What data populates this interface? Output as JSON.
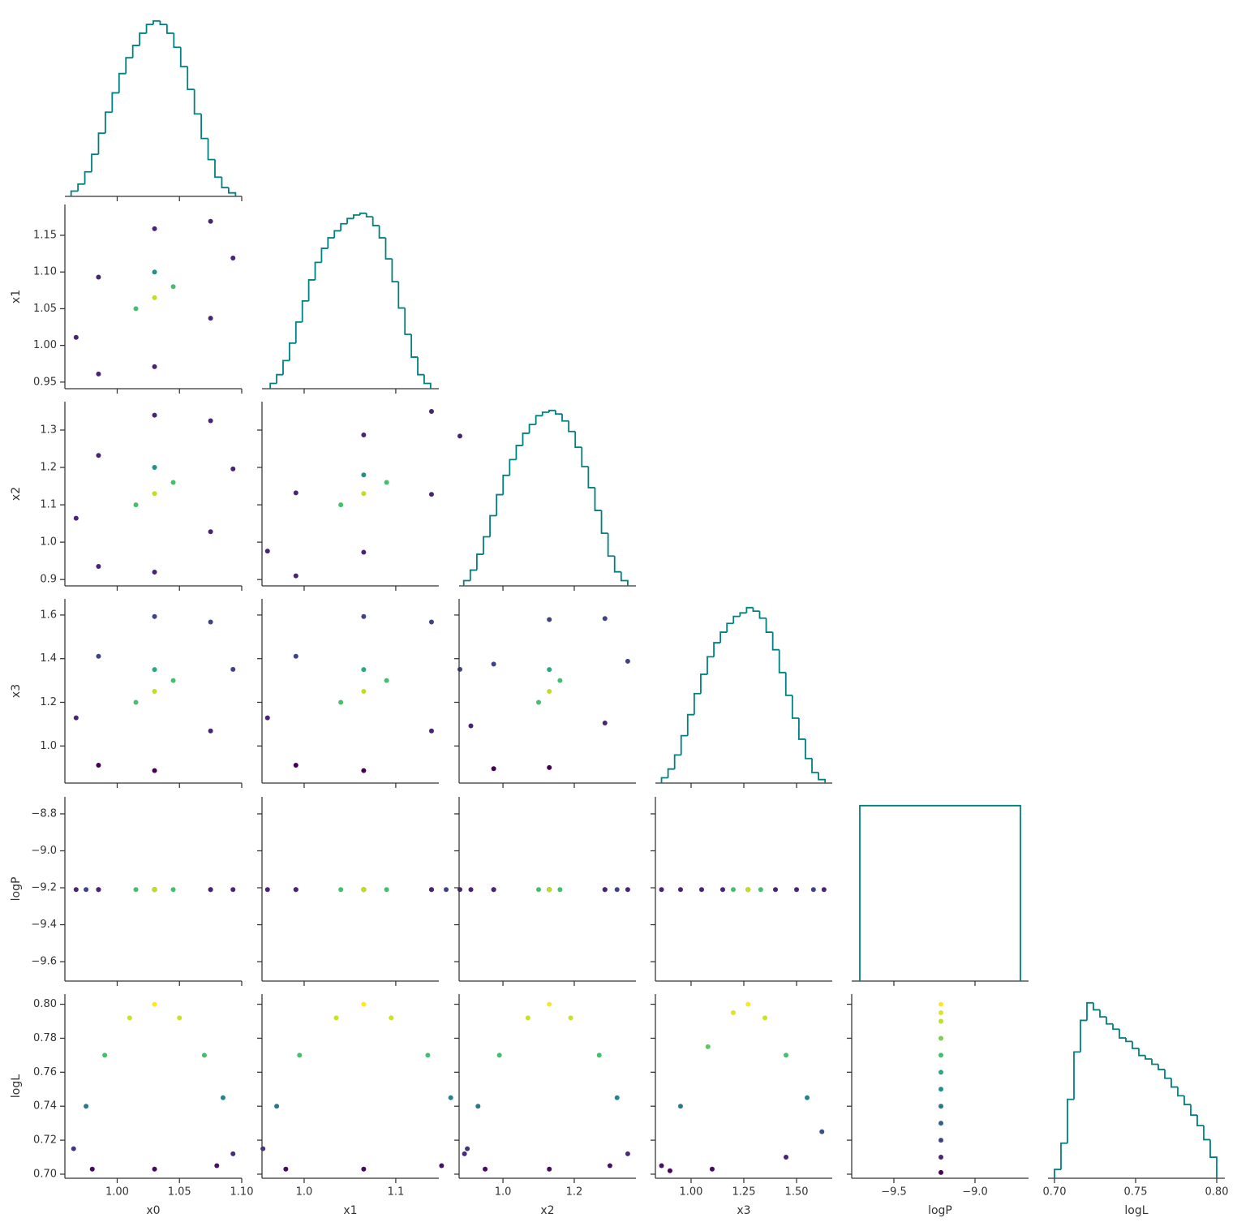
{
  "chart_data": {
    "type": "corner",
    "colormap": "viridis",
    "clim": [
      0.7,
      0.8
    ],
    "hist_color": "#008080",
    "variables": [
      {
        "name": "x0",
        "xlim": [
          0.958,
          1.1
        ],
        "xticks": [
          {
            "value": 1.0,
            "label": "1.00"
          },
          {
            "value": 1.05,
            "label": "1.05"
          },
          {
            "value": 1.1,
            "label": "1.10"
          }
        ]
      },
      {
        "name": "x1",
        "xlim": [
          0.954,
          1.147
        ],
        "xticks": [
          {
            "value": 1.0,
            "label": "1.0"
          },
          1.1
        ],
        "ylim": [
          0.941,
          1.192
        ],
        "yticks": [
          0.95,
          {
            "value": 1.0,
            "label": "1.00"
          },
          1.05,
          {
            "value": 1.1,
            "label": "1.10"
          },
          1.15
        ]
      },
      {
        "name": "x2",
        "xlim": [
          0.877,
          1.373
        ],
        "xticks": [
          {
            "value": 1.0,
            "label": "1.0"
          },
          1.2
        ],
        "ylim": [
          0.883,
          1.376
        ],
        "yticks": [
          0.9,
          {
            "value": 1.0,
            "label": "1.0"
          },
          1.1,
          1.2,
          1.3
        ]
      },
      {
        "name": "x3",
        "xlim": [
          0.831,
          1.669
        ],
        "xticks": [
          {
            "value": 1.0,
            "label": "1.00"
          },
          1.25,
          {
            "value": 1.5,
            "label": "1.50"
          }
        ],
        "ylim": [
          0.83,
          1.674
        ],
        "yticks": [
          {
            "value": 1.0,
            "label": "1.0"
          },
          1.2,
          1.4,
          1.6
        ]
      },
      {
        "name": "logP",
        "xlim": [
          -9.76,
          -8.67
        ],
        "xticks": [
          {
            "value": -9.5,
            "label": "−9.5"
          },
          {
            "value": -9.0,
            "label": "−9.0"
          }
        ],
        "ylim": [
          -9.705,
          -8.708
        ],
        "yticks": [
          {
            "value": -8.8,
            "label": "−8.8"
          },
          {
            "value": -9.0,
            "label": "−9.0"
          },
          {
            "value": -9.2,
            "label": "−9.2"
          },
          {
            "value": -9.4,
            "label": "−9.4"
          },
          {
            "value": -9.6,
            "label": "−9.6"
          }
        ]
      },
      {
        "name": "logL",
        "xlim": [
          0.696,
          0.805
        ],
        "xticks": [
          {
            "value": 0.7,
            "label": "0.70"
          },
          0.75,
          {
            "value": 0.8,
            "label": "0.80"
          }
        ],
        "ylim": [
          0.6976,
          0.806
        ],
        "yticks": [
          {
            "value": 0.7,
            "label": "0.70"
          },
          0.72,
          0.74,
          0.76,
          0.78,
          {
            "value": 0.8,
            "label": "0.80"
          }
        ]
      }
    ],
    "histograms": [
      {
        "ylim": [
          0,
          105
        ],
        "bins": [
          0.963,
          0.9685,
          0.974,
          0.9795,
          0.985,
          0.9905,
          0.996,
          1.0015,
          1.007,
          1.0125,
          1.018,
          1.0235,
          1.029,
          1.0345,
          1.04,
          1.0455,
          1.051,
          1.0565,
          1.062,
          1.0675,
          1.073,
          1.0785,
          1.084,
          1.0895,
          1.095
        ],
        "counts": [
          3,
          7,
          14,
          24,
          36,
          48,
          59,
          70,
          79,
          86,
          93,
          98,
          100,
          98,
          93,
          85,
          74,
          61,
          47,
          33,
          21,
          11,
          5,
          2
        ]
      },
      {
        "ylim": [
          0,
          105
        ],
        "bins": [
          0.963,
          0.97,
          0.977,
          0.984,
          0.991,
          0.998,
          1.005,
          1.012,
          1.019,
          1.026,
          1.033,
          1.04,
          1.047,
          1.054,
          1.061,
          1.068,
          1.075,
          1.082,
          1.089,
          1.096,
          1.103,
          1.11,
          1.117,
          1.124,
          1.131,
          1.138
        ],
        "counts": [
          3,
          8,
          16,
          26,
          38,
          50,
          62,
          72,
          80,
          86,
          90,
          94,
          97,
          99,
          100,
          98,
          93,
          86,
          74,
          61,
          46,
          31,
          18,
          8,
          3
        ]
      },
      {
        "ylim": [
          0,
          105
        ],
        "bins": [
          0.89,
          0.9084,
          0.9268,
          0.9452,
          0.9636,
          0.982,
          1.0004,
          1.0188,
          1.0372,
          1.0556,
          1.074,
          1.0924,
          1.1108,
          1.1292,
          1.1476,
          1.166,
          1.1844,
          1.2028,
          1.2212,
          1.2396,
          1.258,
          1.2764,
          1.2948,
          1.3132,
          1.3316,
          1.35
        ],
        "counts": [
          3,
          9,
          18,
          28,
          40,
          52,
          63,
          72,
          80,
          87,
          92,
          97,
          99,
          100,
          98,
          94,
          88,
          79,
          68,
          56,
          43,
          30,
          17,
          8,
          3
        ]
      },
      {
        "ylim": [
          0,
          105
        ],
        "bins": [
          0.86,
          0.891,
          0.922,
          0.953,
          0.984,
          1.015,
          1.046,
          1.077,
          1.108,
          1.139,
          1.17,
          1.201,
          1.232,
          1.263,
          1.294,
          1.325,
          1.356,
          1.387,
          1.418,
          1.449,
          1.48,
          1.511,
          1.542,
          1.573,
          1.604,
          1.635
        ],
        "counts": [
          3,
          8,
          16,
          27,
          39,
          51,
          62,
          72,
          80,
          86,
          91,
          95,
          97,
          100,
          98,
          94,
          86,
          76,
          63,
          50,
          37,
          25,
          14,
          6,
          2
        ]
      },
      {
        "ylim": [
          0,
          105
        ],
        "bins": [
          -9.71,
          -8.72
        ],
        "counts": [
          100
        ]
      },
      {
        "ylim": [
          0,
          105
        ],
        "bins": [
          0.7,
          0.704,
          0.708,
          0.712,
          0.716,
          0.72,
          0.724,
          0.728,
          0.732,
          0.736,
          0.74,
          0.744,
          0.748,
          0.752,
          0.756,
          0.76,
          0.764,
          0.768,
          0.772,
          0.776,
          0.78,
          0.784,
          0.788,
          0.792,
          0.796,
          0.8
        ],
        "counts": [
          5,
          20,
          45,
          72,
          90,
          100,
          96,
          92,
          88,
          85,
          80,
          78,
          74,
          70,
          68,
          65,
          62,
          57,
          52,
          47,
          42,
          36,
          30,
          22,
          12
        ]
      }
    ],
    "scatter": [
      [
        {
          "x": [
            1.093,
            1.075,
            1.03,
            0.985,
            0.967,
            0.985,
            1.03,
            1.075,
            1.03,
            1.015,
            1.045,
            1.03
          ],
          "y": [
            1.119,
            1.169,
            1.159,
            1.093,
            1.011,
            0.961,
            0.971,
            1.037,
            1.065,
            1.05,
            1.08,
            1.1
          ],
          "c": [
            0.71,
            0.71,
            0.71,
            0.71,
            0.71,
            0.71,
            0.71,
            0.71,
            0.79,
            0.77,
            0.77,
            0.75
          ]
        }
      ],
      [
        {
          "x": [
            1.093,
            1.075,
            1.03,
            0.985,
            0.967,
            0.985,
            1.03,
            1.075,
            1.03,
            1.015,
            1.045,
            1.03
          ],
          "y": [
            1.196,
            1.325,
            1.34,
            1.232,
            1.064,
            0.935,
            0.92,
            1.028,
            1.13,
            1.1,
            1.16,
            1.2
          ],
          "c": [
            0.71,
            0.71,
            0.71,
            0.71,
            0.71,
            0.71,
            0.71,
            0.71,
            0.79,
            0.77,
            0.77,
            0.75
          ]
        },
        {
          "x": [
            1.17,
            1.139,
            1.065,
            0.991,
            0.96,
            0.991,
            1.065,
            1.139,
            1.065,
            1.04,
            1.09,
            1.065
          ],
          "y": [
            1.284,
            1.35,
            1.287,
            1.132,
            0.976,
            0.91,
            0.973,
            1.128,
            1.13,
            1.1,
            1.16,
            1.18
          ],
          "c": [
            0.71,
            0.71,
            0.71,
            0.71,
            0.71,
            0.71,
            0.71,
            0.71,
            0.79,
            0.77,
            0.77,
            0.75
          ]
        }
      ],
      [
        {
          "x": [
            1.093,
            1.075,
            1.03,
            0.985,
            0.967,
            0.985,
            1.03,
            1.075,
            1.03,
            1.015,
            1.045,
            1.03
          ],
          "y": [
            1.351,
            1.568,
            1.593,
            1.411,
            1.129,
            0.912,
            0.887,
            1.069,
            1.25,
            1.2,
            1.3,
            1.35
          ],
          "c": [
            0.72,
            0.72,
            0.72,
            0.72,
            0.71,
            0.7,
            0.7,
            0.71,
            0.79,
            0.77,
            0.77,
            0.76
          ]
        },
        {
          "x": [
            1.17,
            1.139,
            1.065,
            0.991,
            0.96,
            0.991,
            1.065,
            1.139,
            1.065,
            1.04,
            1.09,
            1.065
          ],
          "y": [
            1.351,
            1.568,
            1.593,
            1.411,
            1.129,
            0.912,
            0.887,
            1.069,
            1.25,
            1.2,
            1.3,
            1.35
          ],
          "c": [
            0.72,
            0.72,
            0.72,
            0.72,
            0.71,
            0.7,
            0.7,
            0.71,
            0.79,
            0.77,
            0.77,
            0.76
          ]
        },
        {
          "x": [
            1.35,
            1.286,
            1.13,
            0.974,
            0.91,
            0.974,
            1.13,
            1.286,
            1.13,
            1.1,
            1.16,
            1.13
          ],
          "y": [
            1.388,
            1.584,
            1.579,
            1.375,
            1.092,
            0.896,
            0.901,
            1.105,
            1.25,
            1.2,
            1.3,
            1.35
          ],
          "c": [
            0.72,
            0.72,
            0.72,
            0.72,
            0.71,
            0.7,
            0.7,
            0.71,
            0.79,
            0.77,
            0.77,
            0.76
          ]
        }
      ],
      [
        {
          "x": [
            1.093,
            1.075,
            1.03,
            0.985,
            0.967,
            0.985,
            1.03,
            1.075,
            1.03,
            1.015,
            1.045,
            0.975
          ],
          "y": [
            -9.21,
            -9.21,
            -9.21,
            -9.21,
            -9.21,
            -9.21,
            -9.21,
            -9.21,
            -9.21,
            -9.21,
            -9.21,
            -9.21
          ],
          "c": [
            0.71,
            0.71,
            0.71,
            0.71,
            0.71,
            0.71,
            0.71,
            0.71,
            0.79,
            0.77,
            0.77,
            0.72
          ]
        },
        {
          "x": [
            1.17,
            1.139,
            1.065,
            0.991,
            0.96,
            0.991,
            1.065,
            1.139,
            1.065,
            1.04,
            1.09,
            1.155
          ],
          "y": [
            -9.21,
            -9.21,
            -9.21,
            -9.21,
            -9.21,
            -9.21,
            -9.21,
            -9.21,
            -9.21,
            -9.21,
            -9.21,
            -9.21
          ],
          "c": [
            0.71,
            0.71,
            0.71,
            0.71,
            0.71,
            0.71,
            0.71,
            0.71,
            0.79,
            0.77,
            0.77,
            0.72
          ]
        },
        {
          "x": [
            1.35,
            1.286,
            1.13,
            0.974,
            0.91,
            0.974,
            1.13,
            1.286,
            1.13,
            1.1,
            1.16,
            1.32
          ],
          "y": [
            -9.21,
            -9.21,
            -9.21,
            -9.21,
            -9.21,
            -9.21,
            -9.21,
            -9.21,
            -9.21,
            -9.21,
            -9.21,
            -9.21
          ],
          "c": [
            0.71,
            0.71,
            0.71,
            0.71,
            0.71,
            0.71,
            0.71,
            0.71,
            0.79,
            0.77,
            0.77,
            0.72
          ]
        },
        {
          "x": [
            1.63,
            1.5,
            1.27,
            1.05,
            0.86,
            0.95,
            1.15,
            1.4,
            1.27,
            1.2,
            1.33,
            1.58
          ],
          "y": [
            -9.21,
            -9.21,
            -9.21,
            -9.21,
            -9.21,
            -9.21,
            -9.21,
            -9.21,
            -9.21,
            -9.21,
            -9.21,
            -9.21
          ],
          "c": [
            0.71,
            0.71,
            0.71,
            0.71,
            0.71,
            0.71,
            0.71,
            0.71,
            0.79,
            0.77,
            0.77,
            0.72
          ]
        }
      ],
      [
        {
          "x": [
            0.965,
            0.975,
            0.99,
            1.01,
            1.03,
            1.05,
            1.07,
            1.085,
            1.093,
            0.98,
            1.03,
            1.08
          ],
          "y": [
            0.715,
            0.74,
            0.77,
            0.792,
            0.8,
            0.792,
            0.77,
            0.745,
            0.712,
            0.703,
            0.703,
            0.705
          ],
          "c": [
            0.715,
            0.74,
            0.77,
            0.792,
            0.8,
            0.792,
            0.77,
            0.745,
            0.712,
            0.703,
            0.703,
            0.705
          ]
        },
        {
          "x": [
            0.955,
            0.97,
            0.995,
            1.035,
            1.065,
            1.095,
            1.135,
            1.16,
            1.175,
            0.98,
            1.065,
            1.15
          ],
          "y": [
            0.715,
            0.74,
            0.77,
            0.792,
            0.8,
            0.792,
            0.77,
            0.745,
            0.712,
            0.703,
            0.703,
            0.705
          ],
          "c": [
            0.715,
            0.74,
            0.77,
            0.792,
            0.8,
            0.792,
            0.77,
            0.745,
            0.712,
            0.703,
            0.703,
            0.705
          ]
        },
        {
          "x": [
            0.9,
            0.93,
            0.99,
            1.07,
            1.13,
            1.19,
            1.27,
            1.32,
            1.35,
            0.95,
            1.13,
            1.3
          ],
          "y": [
            0.715,
            0.74,
            0.77,
            0.792,
            0.8,
            0.792,
            0.77,
            0.745,
            0.712,
            0.703,
            0.703,
            0.705
          ],
          "c": [
            0.715,
            0.74,
            0.77,
            0.792,
            0.8,
            0.792,
            0.77,
            0.745,
            0.712,
            0.703,
            0.703,
            0.705
          ]
        },
        {
          "x": [
            0.86,
            0.95,
            1.08,
            1.2,
            1.27,
            1.35,
            1.45,
            1.55,
            1.62,
            0.9,
            1.1,
            1.45
          ],
          "y": [
            0.705,
            0.74,
            0.775,
            0.795,
            0.8,
            0.792,
            0.77,
            0.745,
            0.725,
            0.702,
            0.703,
            0.71
          ],
          "c": [
            0.705,
            0.74,
            0.775,
            0.795,
            0.8,
            0.792,
            0.77,
            0.745,
            0.725,
            0.702,
            0.703,
            0.71
          ]
        },
        {
          "x": [
            -9.21,
            -9.21,
            -9.21,
            -9.21,
            -9.21,
            -9.21,
            -9.21,
            -9.21,
            -9.21,
            -9.21,
            -9.21,
            -9.21
          ],
          "y": [
            0.701,
            0.71,
            0.72,
            0.73,
            0.74,
            0.75,
            0.76,
            0.77,
            0.78,
            0.79,
            0.795,
            0.8
          ],
          "c": [
            0.701,
            0.71,
            0.72,
            0.73,
            0.74,
            0.75,
            0.76,
            0.77,
            0.78,
            0.79,
            0.795,
            0.8
          ]
        }
      ]
    ]
  }
}
